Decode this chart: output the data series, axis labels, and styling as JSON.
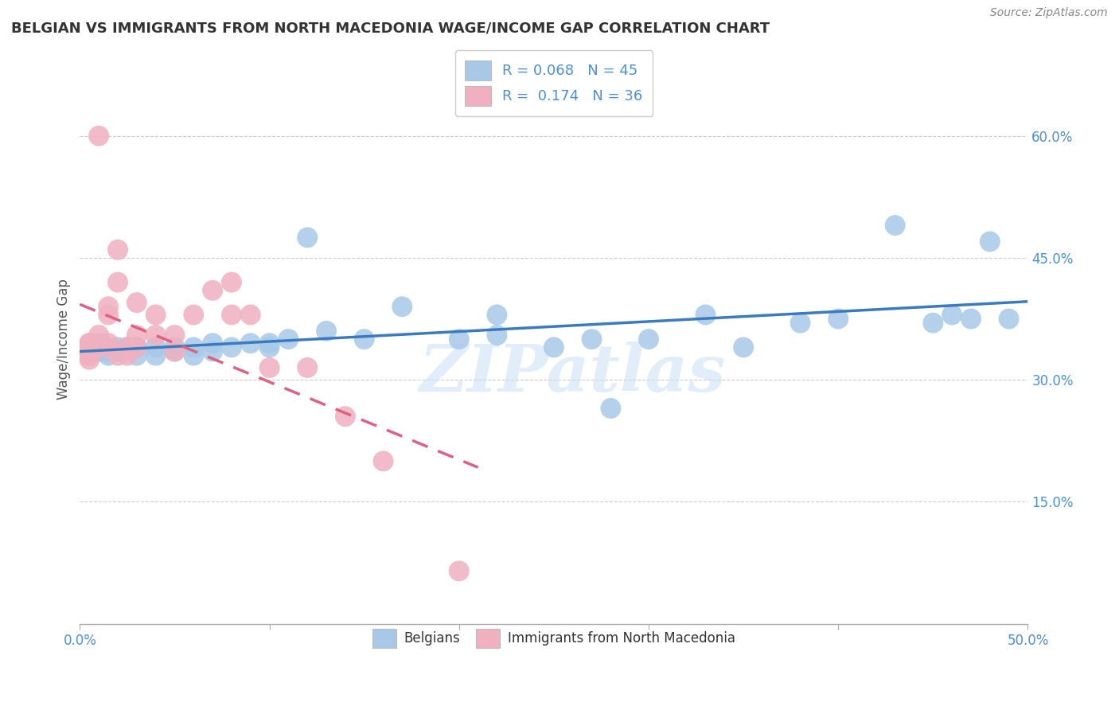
{
  "title": "BELGIAN VS IMMIGRANTS FROM NORTH MACEDONIA WAGE/INCOME GAP CORRELATION CHART",
  "source": "Source: ZipAtlas.com",
  "ylabel": "Wage/Income Gap",
  "xlim": [
    0.0,
    0.5
  ],
  "ylim": [
    0.0,
    0.7
  ],
  "ytick_labels": [
    "15.0%",
    "30.0%",
    "45.0%",
    "60.0%"
  ],
  "ytick_values": [
    0.15,
    0.3,
    0.45,
    0.6
  ],
  "belgian_color": "#a8c8e8",
  "macedonian_color": "#f0b0c0",
  "trendline_belgian_color": "#3a7abf",
  "trendline_macedonian_color": "#e06080",
  "watermark_text": "ZIPatlas",
  "legend_r_belgian": "0.068",
  "legend_n_belgian": "45",
  "legend_r_macedonian": "0.174",
  "legend_n_macedonian": "36",
  "belgians_label": "Belgians",
  "macedonians_label": "Immigrants from North Macedonia",
  "belgian_x": [
    0.005,
    0.01,
    0.01,
    0.01,
    0.015,
    0.015,
    0.02,
    0.02,
    0.025,
    0.03,
    0.03,
    0.04,
    0.04,
    0.05,
    0.05,
    0.06,
    0.06,
    0.07,
    0.07,
    0.08,
    0.09,
    0.1,
    0.1,
    0.11,
    0.12,
    0.13,
    0.15,
    0.17,
    0.2,
    0.22,
    0.22,
    0.25,
    0.27,
    0.28,
    0.3,
    0.33,
    0.35,
    0.38,
    0.4,
    0.43,
    0.45,
    0.46,
    0.47,
    0.48,
    0.49
  ],
  "belgian_y": [
    0.335,
    0.335,
    0.34,
    0.345,
    0.33,
    0.335,
    0.335,
    0.34,
    0.34,
    0.33,
    0.34,
    0.33,
    0.34,
    0.335,
    0.34,
    0.33,
    0.34,
    0.335,
    0.345,
    0.34,
    0.345,
    0.34,
    0.345,
    0.35,
    0.475,
    0.36,
    0.35,
    0.39,
    0.35,
    0.355,
    0.38,
    0.34,
    0.35,
    0.265,
    0.35,
    0.38,
    0.34,
    0.37,
    0.375,
    0.49,
    0.37,
    0.38,
    0.375,
    0.47,
    0.375
  ],
  "macedonian_x": [
    0.005,
    0.005,
    0.005,
    0.005,
    0.005,
    0.005,
    0.005,
    0.01,
    0.01,
    0.01,
    0.015,
    0.015,
    0.015,
    0.015,
    0.02,
    0.02,
    0.02,
    0.025,
    0.025,
    0.03,
    0.03,
    0.03,
    0.04,
    0.04,
    0.05,
    0.05,
    0.06,
    0.07,
    0.08,
    0.08,
    0.09,
    0.1,
    0.12,
    0.14,
    0.16,
    0.2
  ],
  "macedonian_y": [
    0.345,
    0.335,
    0.33,
    0.335,
    0.345,
    0.33,
    0.325,
    0.34,
    0.355,
    0.6,
    0.34,
    0.345,
    0.38,
    0.39,
    0.33,
    0.42,
    0.46,
    0.34,
    0.33,
    0.34,
    0.355,
    0.395,
    0.38,
    0.355,
    0.355,
    0.335,
    0.38,
    0.41,
    0.38,
    0.42,
    0.38,
    0.315,
    0.315,
    0.255,
    0.2,
    0.065
  ],
  "background_color": "#ffffff",
  "grid_color": "#cccccc",
  "title_color": "#333333",
  "text_color": "#4a90d9",
  "label_color": "#555555"
}
